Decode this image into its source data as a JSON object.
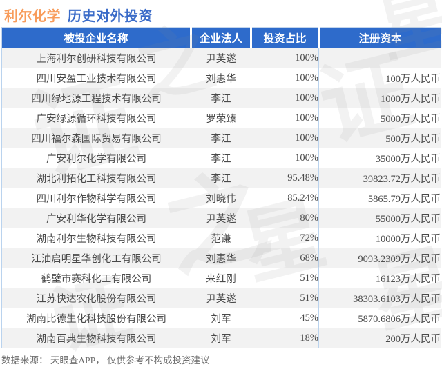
{
  "page": {
    "title_company": "利尔化学",
    "title_rest": "历史对外投资",
    "source_note": "数据来源： 天眼查APP， 仅供参考不构成投资建议"
  },
  "chart_data": {
    "type": "table",
    "title": "利尔化学 历史对外投资",
    "columns": [
      "被投企业名称",
      "企业法人",
      "投资占比",
      "注册资本"
    ],
    "column_keys": [
      "company",
      "legal-person",
      "ratio",
      "capital"
    ],
    "rows": [
      [
        "上海利尔创研科技有限公司",
        "尹英遂",
        "100%",
        ""
      ],
      [
        "四川安盈工业技术有限公司",
        "刘惠华",
        "100%",
        "100万人民币"
      ],
      [
        "四川绿地源工程技术有限公司",
        "李江",
        "100%",
        "1000万人民币"
      ],
      [
        "广安绿源循环科技有限公司",
        "罗荣臻",
        "100%",
        "5000万人民币"
      ],
      [
        "四川福尔森国际贸易有限公司",
        "李江",
        "100%",
        "500万人民币"
      ],
      [
        "广安利尔化学有限公司",
        "李江",
        "100%",
        "35000万人民币"
      ],
      [
        "湖北利拓化工科技有限公司",
        "李江",
        "95.48%",
        "39823.72万人民币"
      ],
      [
        "四川利尔作物科学有限公司",
        "刘晓伟",
        "85.24%",
        "5865.79万人民币"
      ],
      [
        "广安利华化学有限公司",
        "尹英遂",
        "80%",
        "55000万人民币"
      ],
      [
        "湖南利尔生物科技有限公司",
        "范谦",
        "72%",
        "10000万人民币"
      ],
      [
        "江油启明星华创化工有限公司",
        "刘惠华",
        "68%",
        "9093.2309万人民币"
      ],
      [
        "鹤壁市赛科化工有限公司",
        "来红刚",
        "51%",
        "16123万人民币"
      ],
      [
        "江苏快达农化股份有限公司",
        "尹英遂",
        "51%",
        "38303.6103万人民币"
      ],
      [
        "湖南比德生化科技股份有限公司",
        "刘军",
        "45%",
        "5870.6806万人民币"
      ],
      [
        "湖南百典生物科技有限公司",
        "刘军",
        "18%",
        "200万人民币"
      ]
    ],
    "source_note": "数据来源： 天眼查APP， 仅供参考不构成投资建议"
  },
  "colors": {
    "header_bg": "#2E6BCB",
    "title_company": "#F89C5B",
    "title_rest": "#3A6BC8",
    "row_alt_bg": "#F2F2F2",
    "cell_border": "#BAD3EE",
    "body_text": "#4A4A4A",
    "source_text": "#6E6E6E"
  },
  "watermark": {
    "text": "证券之星",
    "glyphs": [
      "之",
      "星",
      "证",
      "证",
      "之",
      "星",
      "证",
      "星"
    ]
  }
}
